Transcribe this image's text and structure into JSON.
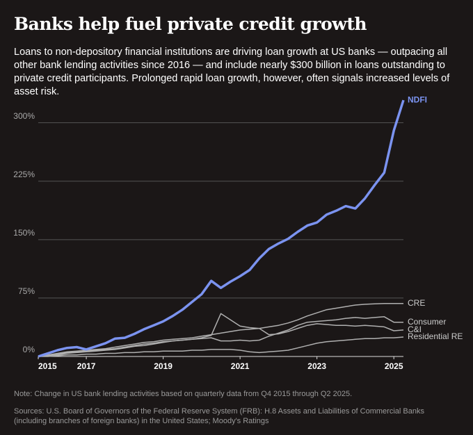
{
  "chart_data": {
    "type": "line",
    "title": "Banks help fuel private credit growth",
    "subtitle": "Loans to non-depository financial institutions are driving loan growth at US banks — outpacing all other bank lending activities since 2016 — and include nearly $300 billion in loans outstanding to private credit participants. Prolonged rapid loan growth, however, often signals increased levels of asset risk.",
    "note": "Note: Change in US bank lending activities based on quarterly data from Q4 2015 through Q2 2025.",
    "sources": "Sources: U.S. Board of Governors of the Federal Reserve System (FRB): H.8 Assets and Liabilities of Commercial Banks (including branches of foreign banks) in the United States; Moody's Ratings",
    "x": [
      2015.75,
      2016,
      2016.25,
      2016.5,
      2016.75,
      2017,
      2017.25,
      2017.5,
      2017.75,
      2018,
      2018.25,
      2018.5,
      2018.75,
      2019,
      2019.25,
      2019.5,
      2019.75,
      2020,
      2020.25,
      2020.5,
      2020.75,
      2021,
      2021.25,
      2021.5,
      2021.75,
      2022,
      2022.25,
      2022.5,
      2022.75,
      2023,
      2023.25,
      2023.5,
      2023.75,
      2024,
      2024.25,
      2024.5,
      2024.75,
      2025,
      2025.25
    ],
    "xlim": [
      2015.75,
      2025.25
    ],
    "xticks": [
      {
        "value": 2015.75,
        "label": "2015"
      },
      2017,
      2019,
      2021,
      2023,
      2025
    ],
    "ylim": [
      0,
      330
    ],
    "yticks": [
      {
        "value": 0,
        "label": "0%"
      },
      {
        "value": 75,
        "label": "75%"
      },
      {
        "value": 150,
        "label": "150%"
      },
      {
        "value": 225,
        "label": "225%"
      },
      {
        "value": 300,
        "label": "300%"
      }
    ],
    "grid": true,
    "series": [
      {
        "name": "CRE",
        "color": "#b0b0b0",
        "values": [
          0,
          2,
          4,
          6,
          7,
          8,
          9,
          10,
          12,
          14,
          16,
          18,
          19,
          21,
          22,
          23,
          24,
          26,
          28,
          30,
          32,
          34,
          35,
          36,
          38,
          40,
          43,
          47,
          52,
          56,
          60,
          62,
          64,
          66,
          67,
          67.5,
          68,
          68,
          68
        ]
      },
      {
        "name": "Consumer",
        "color": "#b0b0b0",
        "values": [
          0,
          1,
          3,
          5,
          6,
          7,
          8,
          9,
          10,
          12,
          14,
          16,
          17,
          19,
          20,
          21,
          22,
          23,
          24,
          20,
          20,
          21,
          20,
          21,
          26,
          30,
          34,
          40,
          44,
          45,
          46,
          47,
          49,
          50,
          49,
          50,
          51,
          44,
          44
        ]
      },
      {
        "name": "C&I",
        "color": "#b0b0b0",
        "values": [
          0,
          1,
          2,
          4,
          5,
          6,
          7,
          8,
          9,
          11,
          13,
          14,
          16,
          18,
          20,
          21,
          22,
          24,
          27,
          55,
          47,
          39,
          37,
          36,
          28,
          29,
          32,
          36,
          40,
          42,
          41,
          40,
          40,
          39,
          40,
          39,
          38,
          33,
          34
        ]
      },
      {
        "name": "Residential RE",
        "color": "#b0b0b0",
        "values": [
          0,
          0,
          1,
          2,
          2,
          3,
          3,
          4,
          4,
          5,
          5,
          6,
          6,
          7,
          7,
          7,
          8,
          8,
          9,
          9,
          9,
          8,
          6,
          5,
          6,
          7,
          8,
          11,
          14,
          17,
          19,
          20,
          21,
          22,
          23,
          23,
          24,
          24,
          25
        ]
      },
      {
        "name": "NDFI",
        "color": "#7b93f0",
        "values": [
          0,
          4,
          8,
          11,
          12,
          9,
          13,
          17,
          23,
          24,
          29,
          35,
          40,
          45,
          52,
          60,
          70,
          80,
          97,
          88,
          96,
          103,
          111,
          126,
          138,
          145,
          151,
          160,
          168,
          172,
          182,
          187,
          193,
          190,
          203,
          220,
          236,
          290,
          329
        ]
      }
    ]
  }
}
